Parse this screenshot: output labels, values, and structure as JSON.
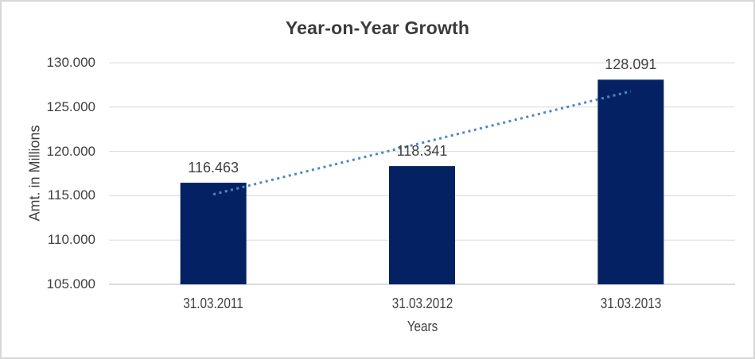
{
  "chart_data": {
    "type": "bar",
    "title": "Year-on-Year Growth",
    "xlabel": "Years",
    "ylabel": "Amt. in Millions",
    "categories": [
      "31.03.2011",
      "31.03.2012",
      "31.03.2013"
    ],
    "values": [
      116.463,
      118.341,
      128.091
    ],
    "value_labels": [
      "116.463",
      "118.341",
      "128.091"
    ],
    "ylim": [
      105,
      130
    ],
    "yticks": [
      {
        "value": 105,
        "label": "105.000"
      },
      {
        "value": 110,
        "label": "110.000"
      },
      {
        "value": 115,
        "label": "115.000"
      },
      {
        "value": 120,
        "label": "120.000"
      },
      {
        "value": 125,
        "label": "125.000"
      },
      {
        "value": 130,
        "label": "130.000"
      }
    ],
    "grid": true,
    "legend": false,
    "bar_color": "#042263",
    "trendline": {
      "type": "linear",
      "style": "dotted",
      "color": "#4E87C8",
      "fit_start": 115.151,
      "fit_end": 126.779
    },
    "colors": {
      "background": "#FFFFFF",
      "frame_border": "#D7D7D7",
      "gridline": "#D9D9D9",
      "axis_line": "#CFCFCF",
      "title_text": "#3B3B3B",
      "label_text": "#404040"
    }
  }
}
